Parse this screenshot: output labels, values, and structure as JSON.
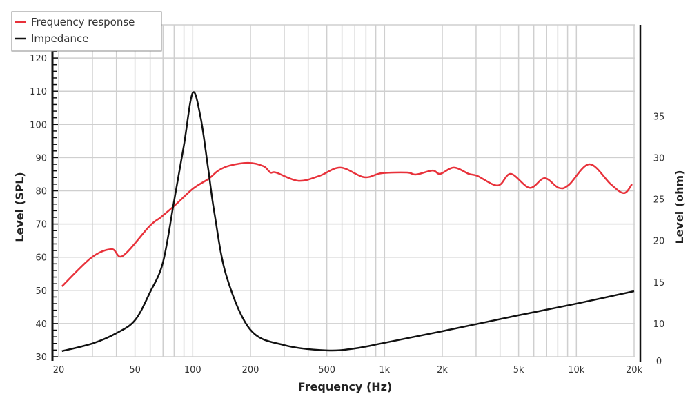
{
  "chart_data": {
    "type": "line",
    "title": "",
    "xlabel": "Frequency (Hz)",
    "ylabel": "Level (SPL)",
    "y2label": "Level (ohm)",
    "xscale": "log",
    "xlim": [
      20,
      20000
    ],
    "ylim": [
      30,
      130
    ],
    "grid": true,
    "legend_position": "top-left",
    "x_ticks": [
      {
        "v": 20,
        "label": "20"
      },
      {
        "v": 50,
        "label": "50"
      },
      {
        "v": 100,
        "label": "100"
      },
      {
        "v": 200,
        "label": "200"
      },
      {
        "v": 500,
        "label": "500"
      },
      {
        "v": 1000,
        "label": "1k"
      },
      {
        "v": 2000,
        "label": "2k"
      },
      {
        "v": 5000,
        "label": "5k"
      },
      {
        "v": 10000,
        "label": "10k"
      },
      {
        "v": 20000,
        "label": "20k"
      }
    ],
    "x_grid": [
      20,
      30,
      40,
      50,
      60,
      70,
      80,
      90,
      100,
      200,
      300,
      400,
      500,
      600,
      700,
      800,
      900,
      1000,
      2000,
      3000,
      4000,
      5000,
      6000,
      7000,
      8000,
      9000,
      10000,
      20000
    ],
    "y_ticks": [
      {
        "v": 30,
        "label": "30"
      },
      {
        "v": 40,
        "label": "40"
      },
      {
        "v": 50,
        "label": "50"
      },
      {
        "v": 60,
        "label": "60"
      },
      {
        "v": 70,
        "label": "70"
      },
      {
        "v": 80,
        "label": "80"
      },
      {
        "v": 90,
        "label": "90"
      },
      {
        "v": 100,
        "label": "100"
      },
      {
        "v": 110,
        "label": "110"
      },
      {
        "v": 120,
        "label": "120"
      }
    ],
    "y2_ticks": [
      {
        "v": 0,
        "label": "0"
      },
      {
        "v": 10,
        "label": "10"
      },
      {
        "v": 15,
        "label": "15"
      },
      {
        "v": 20,
        "label": "20"
      },
      {
        "v": 25,
        "label": "25"
      },
      {
        "v": 30,
        "label": "30"
      },
      {
        "v": 35,
        "label": "35"
      }
    ],
    "series": [
      {
        "name": "Frequency response",
        "color": "#e8313a",
        "axis": "left",
        "x": [
          20.8,
          29.7,
          37.8,
          43.2,
          59.4,
          68.1,
          81,
          100.6,
          121,
          136,
          156,
          195,
          234,
          254,
          272,
          356,
          458,
          589,
          782,
          965,
          1309,
          1460,
          1779,
          1948,
          2298,
          2750,
          3044,
          3896,
          4549,
          5705,
          6827,
          8092,
          9146,
          11700,
          15100,
          17700,
          19500
        ],
        "y": [
          51.2,
          59.9,
          62.4,
          60.4,
          69.3,
          72.0,
          75.7,
          80.7,
          83.6,
          86.1,
          87.6,
          88.4,
          87.4,
          85.5,
          85.5,
          83.0,
          84.5,
          87.0,
          84.1,
          85.3,
          85.5,
          84.9,
          86.1,
          85.1,
          87.0,
          85.1,
          84.5,
          81.6,
          85.1,
          80.9,
          83.8,
          80.9,
          81.8,
          88.0,
          82.0,
          79.3,
          82.0
        ]
      },
      {
        "name": "Impedance",
        "color": "#111111",
        "axis": "right",
        "x": [
          20.8,
          30,
          40,
          50,
          60,
          70,
          80,
          90,
          100,
          110,
          120,
          130,
          150,
          200,
          300,
          500,
          700,
          1000,
          2000,
          5000,
          10000,
          20000
        ],
        "y": [
          1.7,
          4.0,
          7.1,
          10.4,
          13.8,
          17.4,
          24.8,
          31.5,
          37.8,
          34.8,
          28.9,
          23.2,
          15.7,
          8.1,
          3.5,
          1.9,
          2.5,
          4.2,
          7.7,
          11.0,
          12.4,
          13.9
        ]
      }
    ]
  }
}
